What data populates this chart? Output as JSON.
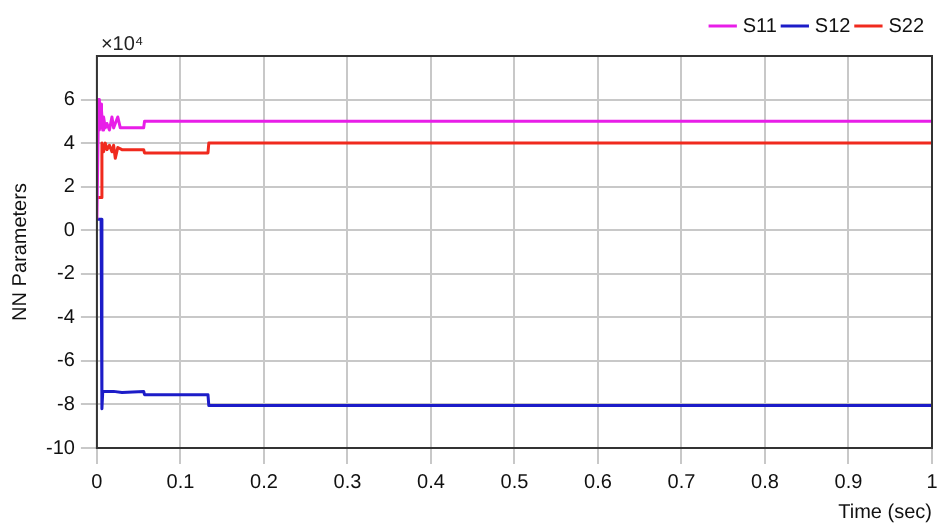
{
  "chart_data": {
    "type": "line",
    "xlabel": "Time (sec)",
    "ylabel": "NN Parameters",
    "annotations": [
      "×10⁴"
    ],
    "xlim": [
      0,
      1
    ],
    "xticks": [
      0,
      0.1,
      0.2,
      0.3,
      0.4,
      0.5,
      0.6,
      0.7,
      0.8,
      0.9,
      1
    ],
    "ylim": [
      -10,
      8
    ],
    "yticks": [
      -10,
      -8,
      -6,
      -4,
      -2,
      0,
      2,
      4,
      6
    ],
    "grid": true,
    "legend": "top right",
    "marker": "none",
    "line_style": "solid",
    "series": [
      {
        "name": "S11",
        "color": "#e81ee8",
        "x": [
          0,
          0.002,
          0.003,
          0.004,
          0.005,
          0.006,
          0.007,
          0.008,
          0.01,
          0.012,
          0.015,
          0.018,
          0.02,
          0.022,
          0.025,
          0.028,
          0.03,
          0.056,
          0.057,
          1
        ],
        "values": [
          0.5,
          6,
          4.6,
          5.8,
          4.7,
          5.5,
          4.6,
          5.2,
          4.7,
          4.9,
          4.6,
          5.2,
          4.7,
          4.9,
          5.2,
          4.7,
          4.7,
          4.7,
          5.0,
          5.0
        ]
      },
      {
        "name": "S12",
        "color": "#1c1cc8",
        "x": [
          0,
          0.005,
          0.006,
          0.007,
          0.02,
          0.03,
          0.056,
          0.057,
          0.133,
          0.134,
          1
        ],
        "values": [
          0.5,
          0.5,
          -8.2,
          -7.4,
          -7.4,
          -7.45,
          -7.4,
          -7.55,
          -7.55,
          -8.05,
          -8.05
        ]
      },
      {
        "name": "S22",
        "color": "#f02a1e",
        "x": [
          0.001,
          0.005,
          0.006,
          0.008,
          0.01,
          0.012,
          0.015,
          0.018,
          0.02,
          0.022,
          0.025,
          0.03,
          0.056,
          0.057,
          0.133,
          0.134,
          1
        ],
        "values": [
          1.5,
          1.5,
          4.0,
          3.6,
          4.0,
          3.7,
          3.9,
          3.6,
          3.9,
          3.3,
          3.8,
          3.7,
          3.7,
          3.55,
          3.55,
          4.0,
          4.0
        ]
      }
    ]
  }
}
